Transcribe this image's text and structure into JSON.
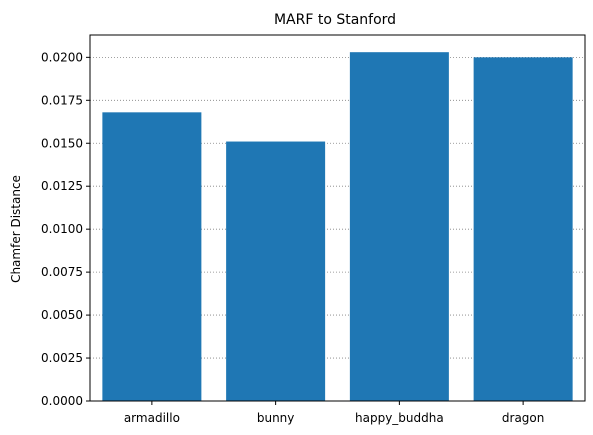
{
  "chart_data": {
    "type": "bar",
    "title": "MARF to Stanford",
    "xlabel": "",
    "ylabel": "Chamfer Distance",
    "categories": [
      "armadillo",
      "bunny",
      "happy_buddha",
      "dragon"
    ],
    "values": [
      0.0168,
      0.0151,
      0.0203,
      0.02
    ],
    "ylim": [
      0,
      0.0213
    ],
    "yticks": [
      "0.0000",
      "0.0025",
      "0.0050",
      "0.0075",
      "0.0100",
      "0.0125",
      "0.0150",
      "0.0175",
      "0.0200"
    ],
    "grid": "horizontal dotted",
    "bar_color": "#1f77b4"
  }
}
